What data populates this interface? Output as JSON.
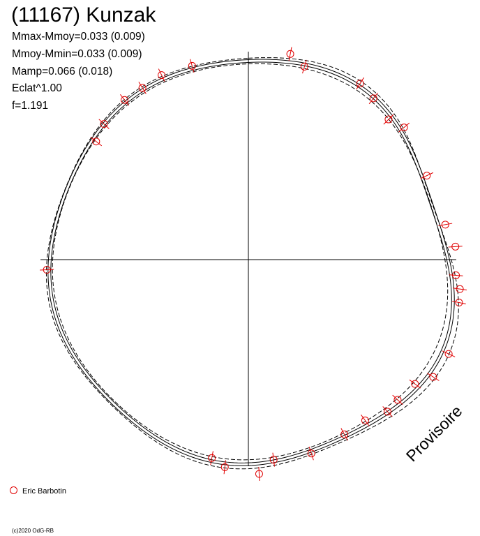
{
  "header": {
    "title": "(11167) Kunzak",
    "stats": [
      "Mmax-Mmoy=0.033 (0.009)",
      "Mmoy-Mmin=0.033 (0.009)",
      "Mamp=0.066 (0.018)",
      "Eclat^1.00",
      "f=1.191"
    ]
  },
  "watermark": "Provisoire",
  "legend": {
    "label": "Eric Barbotin",
    "color": "#e00000"
  },
  "copyright": "(c)2020 OdG-RB",
  "chart_data": {
    "type": "polar-lightcurve",
    "title": "(11167) Kunzak",
    "amplitude_mag": 0.066,
    "curves": [
      {
        "style": "solid",
        "amplitude": 0.066
      },
      {
        "style": "solid",
        "amplitude": 0.066
      },
      {
        "style": "dashed",
        "amplitude": 0.084
      },
      {
        "style": "dashed",
        "amplitude": 0.048
      }
    ],
    "series": [
      {
        "name": "Eric Barbotin",
        "color": "#e00000",
        "points": [
          {
            "phase": 0.032,
            "mag": -0.023
          },
          {
            "phase": 0.045,
            "mag": 0.012
          },
          {
            "phase": 0.09,
            "mag": -0.004
          },
          {
            "phase": 0.105,
            "mag": 0.008
          },
          {
            "phase": 0.125,
            "mag": 0.018
          },
          {
            "phase": 0.138,
            "mag": -0.01
          },
          {
            "phase": 0.18,
            "mag": -0.012
          },
          {
            "phase": 0.222,
            "mag": -0.018
          },
          {
            "phase": 0.24,
            "mag": -0.03
          },
          {
            "phase": 0.262,
            "mag": -0.012
          },
          {
            "phase": 0.272,
            "mag": -0.02
          },
          {
            "phase": 0.282,
            "mag": -0.016
          },
          {
            "phase": 0.32,
            "mag": -0.018
          },
          {
            "phase": 0.34,
            "mag": -0.012
          },
          {
            "phase": 0.352,
            "mag": 0.02
          },
          {
            "phase": 0.37,
            "mag": 0.02
          },
          {
            "phase": 0.382,
            "mag": 0.008
          },
          {
            "phase": 0.4,
            "mag": 0.022
          },
          {
            "phase": 0.42,
            "mag": 0.012
          },
          {
            "phase": 0.45,
            "mag": -0.004
          },
          {
            "phase": 0.48,
            "mag": 0.01
          },
          {
            "phase": 0.492,
            "mag": -0.03
          },
          {
            "phase": 0.518,
            "mag": -0.008
          },
          {
            "phase": 0.529,
            "mag": 0.015
          },
          {
            "phase": 0.742,
            "mag": -0.004
          },
          {
            "phase": 0.855,
            "mag": 0.018
          },
          {
            "phase": 0.87,
            "mag": 0.004
          },
          {
            "phase": 0.895,
            "mag": -0.004
          },
          {
            "phase": 0.912,
            "mag": -0.002
          },
          {
            "phase": 0.93,
            "mag": -0.01
          },
          {
            "phase": 0.955,
            "mag": -0.006
          }
        ]
      }
    ]
  }
}
